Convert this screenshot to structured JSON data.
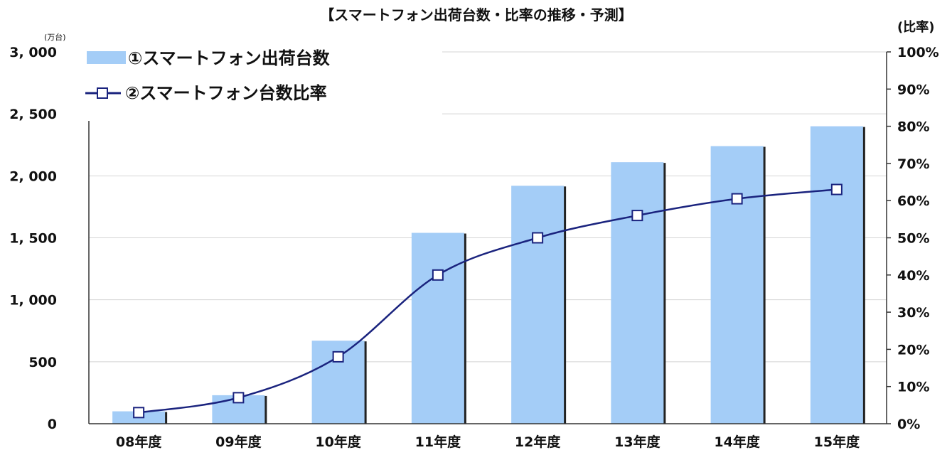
{
  "chart_data": {
    "type": "bar+line",
    "title": "【スマートフォン出荷台数・比率の推移・予測】",
    "categories": [
      "08年度",
      "09年度",
      "10年度",
      "11年度",
      "12年度",
      "13年度",
      "14年度",
      "15年度"
    ],
    "left_axis": {
      "unit": "(万台)",
      "ylim": [
        0,
        3000
      ],
      "ticks": [
        0,
        500,
        1000,
        1500,
        2000,
        2500,
        3000
      ],
      "tick_labels": [
        "0",
        "500",
        "1, 000",
        "1, 500",
        "2, 000",
        "2, 500",
        "3, 000"
      ]
    },
    "right_axis": {
      "unit": "(比率)",
      "ylim": [
        0,
        100
      ],
      "ticks": [
        0,
        10,
        20,
        30,
        40,
        50,
        60,
        70,
        80,
        90,
        100
      ],
      "tick_labels": [
        "0%",
        "10%",
        "20%",
        "30%",
        "40%",
        "50%",
        "60%",
        "70%",
        "80%",
        "90%",
        "100%"
      ]
    },
    "series": [
      {
        "name": "①スマートフォン出荷台数",
        "type": "bar",
        "axis": "left",
        "color": "#a4cdf7",
        "values": [
          100,
          230,
          670,
          1540,
          1920,
          2110,
          2240,
          2400
        ]
      },
      {
        "name": "②スマートフォン台数比率",
        "type": "line",
        "axis": "right",
        "color": "#1a237e",
        "marker": "hollow-square",
        "values": [
          3,
          7,
          18,
          40,
          50,
          56,
          60.5,
          63
        ]
      }
    ],
    "grid": true,
    "legend_position": "top-left"
  }
}
